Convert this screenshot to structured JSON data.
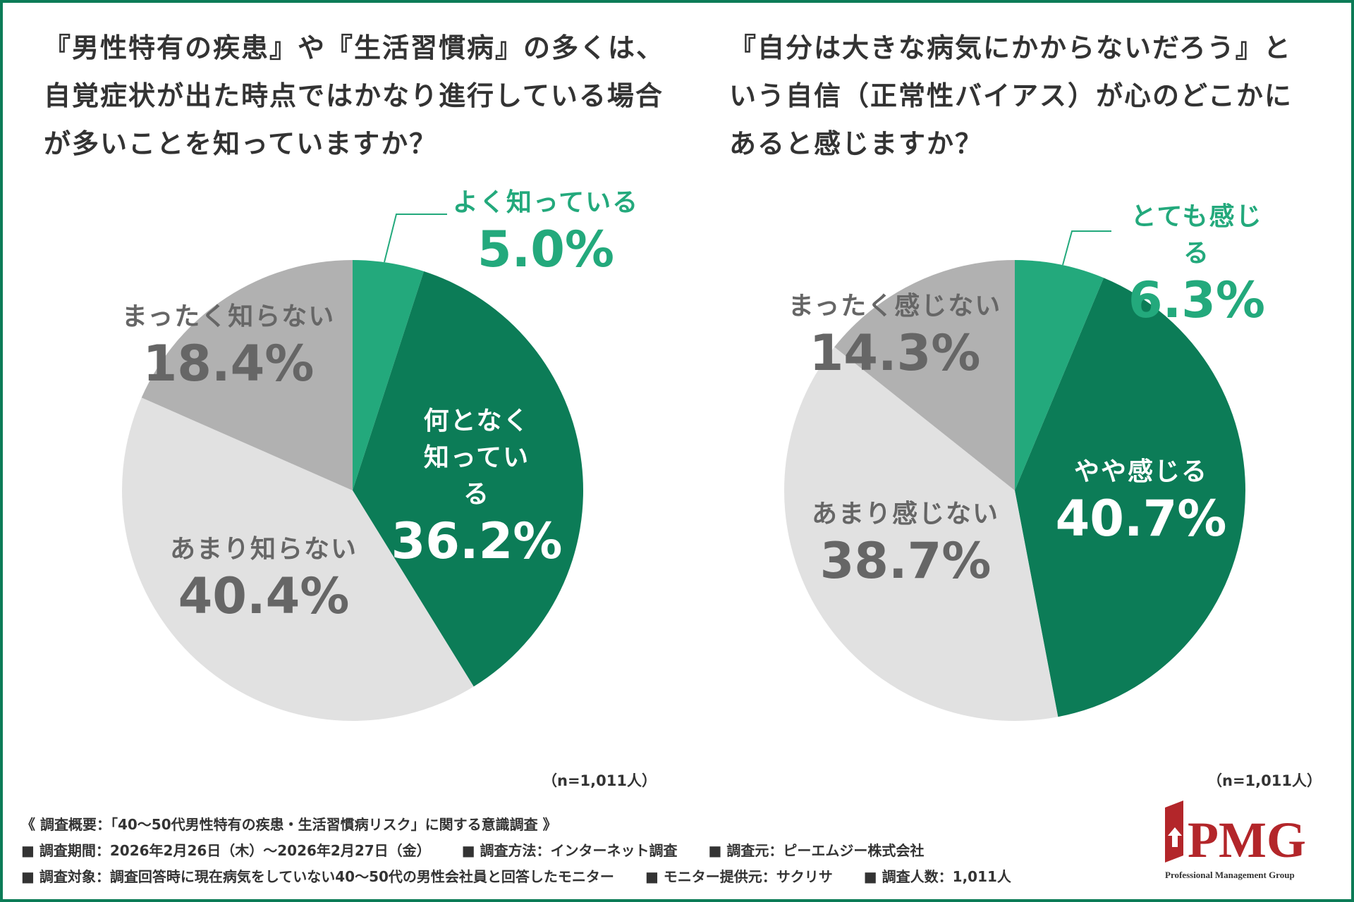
{
  "chart_data": [
    {
      "type": "pie",
      "title": "『男性特有の疾患』や『生活習慣病』の多くは、自覚症状が出た時点ではかなり進行している場合が多いことを知っていますか？",
      "categories": [
        "よく知っている",
        "何となく知っている",
        "あまり知らない",
        "まったく知らない"
      ],
      "values": [
        5.0,
        36.2,
        40.4,
        18.4
      ],
      "value_labels": [
        "5.0%",
        "36.2%",
        "40.4%",
        "18.4%"
      ],
      "colors": [
        "#23a97c",
        "#0c7c57",
        "#e1e1e1",
        "#b1b1b1"
      ],
      "note": "（n=1,011人）"
    },
    {
      "type": "pie",
      "title": "『自分は大きな病気にかからないだろう』という自信（正常性バイアス）が心のどこかにあると感じますか？",
      "categories": [
        "とても感じる",
        "やや感じる",
        "あまり感じない",
        "まったく感じない"
      ],
      "values": [
        6.3,
        40.7,
        38.7,
        14.3
      ],
      "value_labels": [
        "6.3%",
        "40.7%",
        "38.7%",
        "14.3%"
      ],
      "colors": [
        "#23a97c",
        "#0c7c57",
        "#e1e1e1",
        "#b1b1b1"
      ],
      "note": "（n=1,011人）"
    }
  ],
  "footer": {
    "heading": "《 調査概要：「40〜50代男性特有の疾患・生活習慣病リスク」に関する意識調査 》",
    "rows": [
      [
        "■ 調査期間：2026年2月26日（木）〜2026年2月27日（金）",
        "■ 調査方法：インターネット調査",
        "■ 調査元：ピーエムジー株式会社"
      ],
      [
        "■ 調査対象：調査回答時に現在病気をしていない40〜50代の男性会社員と回答したモニター",
        "■ モニター提供元：サクリサ",
        "■ 調査人数：1,011人"
      ]
    ]
  },
  "logo": {
    "name": "PMG",
    "tagline": "Professional Management Group"
  }
}
